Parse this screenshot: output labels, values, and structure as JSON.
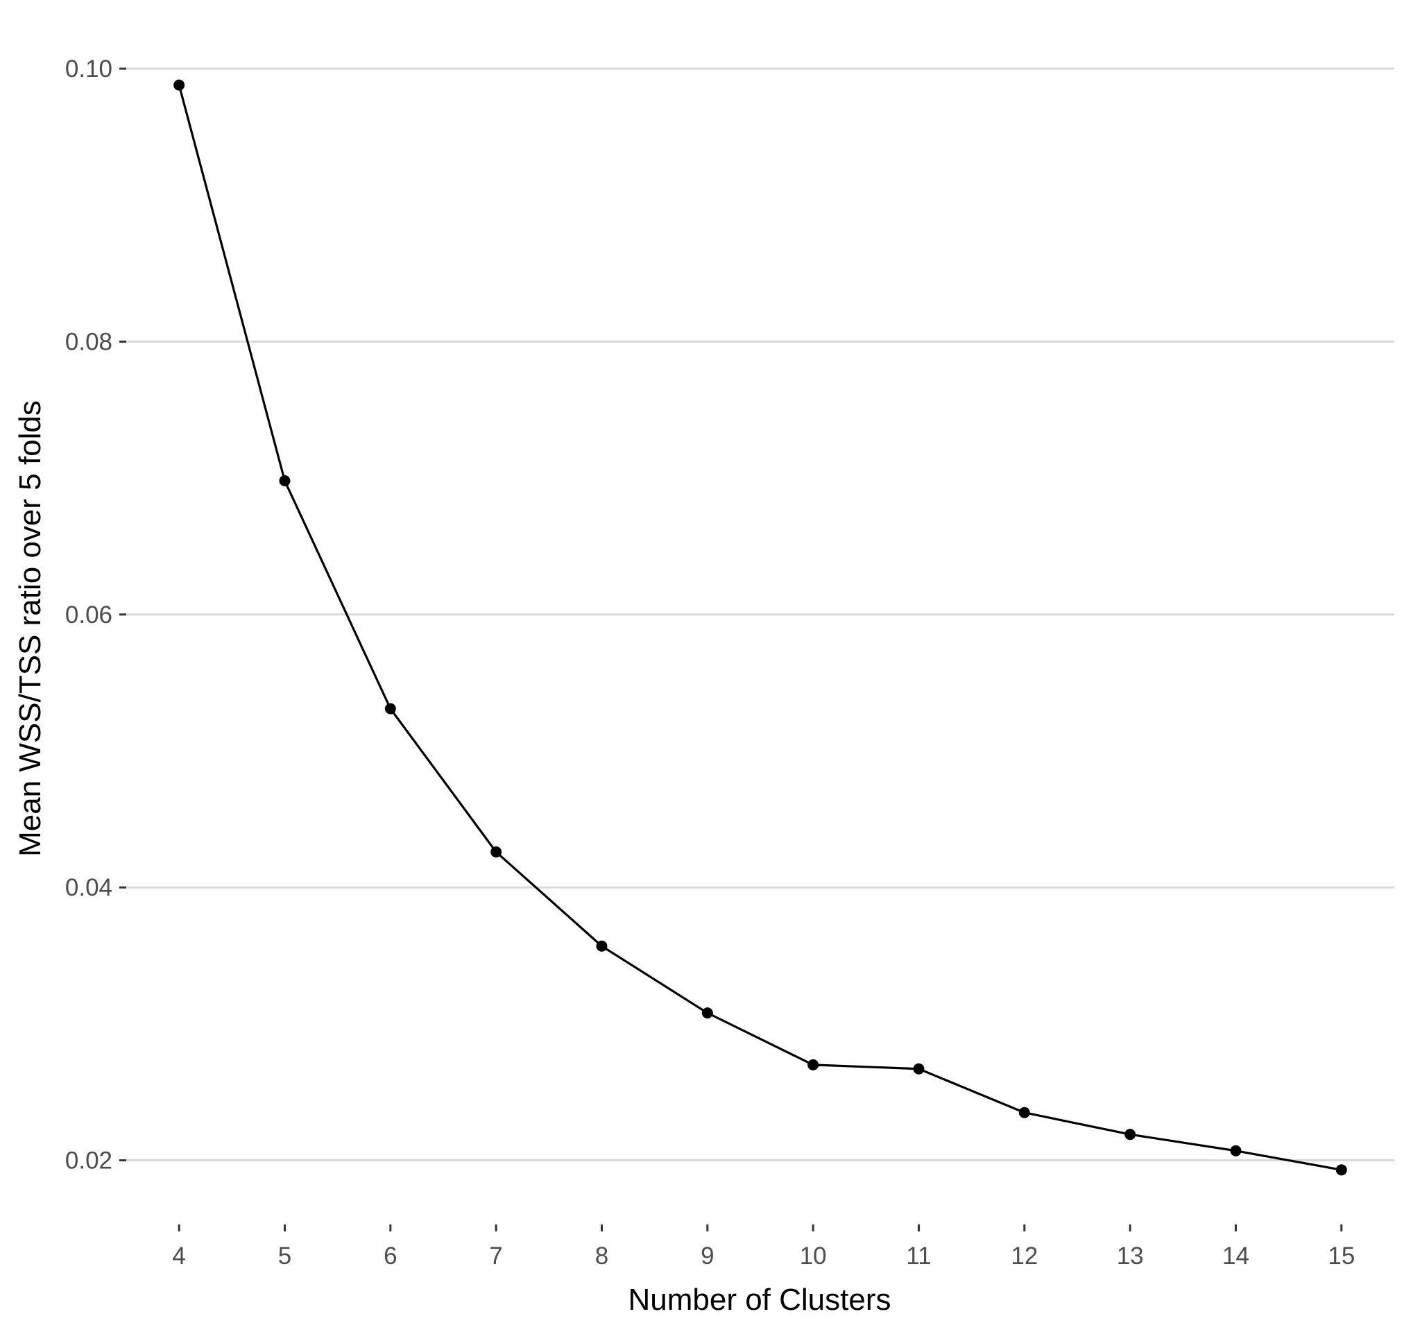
{
  "chart_data": {
    "type": "line",
    "title": "",
    "xlabel": "Number of Clusters",
    "ylabel": "Mean WSS/TSS ratio over 5 folds",
    "x": [
      4,
      5,
      6,
      7,
      8,
      9,
      10,
      11,
      12,
      13,
      14,
      15
    ],
    "x_tick_labels": [
      "4",
      "5",
      "6",
      "7",
      "8",
      "9",
      "10",
      "11",
      "12",
      "13",
      "14",
      "15"
    ],
    "y_ticks": [
      0.02,
      0.04,
      0.06,
      0.08,
      0.1
    ],
    "y_tick_labels": [
      "0.02",
      "0.04",
      "0.06",
      "0.08",
      "0.10"
    ],
    "series": [
      {
        "values": [
          0.0988,
          0.0698,
          0.0531,
          0.0426,
          0.0357,
          0.0308,
          0.027,
          0.0267,
          0.0235,
          0.0219,
          0.0207,
          0.0193
        ]
      }
    ],
    "xlim": [
      3.5,
      15.5
    ],
    "ylim": [
      0.0153,
      0.103
    ],
    "grid": "horizontal major lines only",
    "legend": "none",
    "colors": {
      "line": "#000000",
      "points": "#000000",
      "grid": "#d9d9d9",
      "tick_text": "#4d4d4d",
      "axis_title": "#000000",
      "background": "#ffffff"
    }
  }
}
